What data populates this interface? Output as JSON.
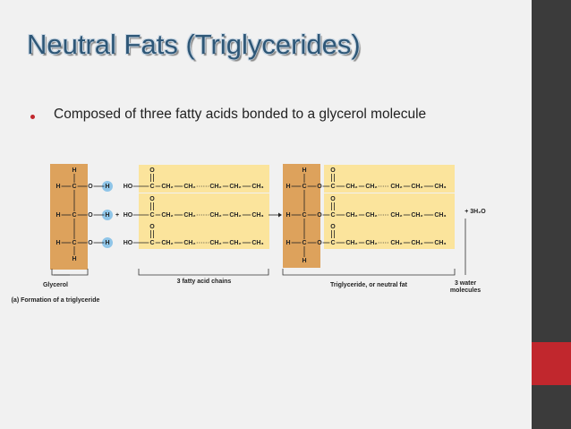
{
  "title": "Neutral Fats (Triglycerides)",
  "bullet": "Composed of three fatty acids bonded to a glycerol molecule",
  "diagram": {
    "glycerol": {
      "top_h": "H",
      "bottom_h": "H",
      "rows": [
        [
          "H",
          "C",
          "O",
          "H"
        ],
        [
          "H",
          "C",
          "O",
          "H"
        ],
        [
          "H",
          "C",
          "O",
          "H"
        ]
      ]
    },
    "plus": "+",
    "fatty_acids": {
      "rows": [
        {
          "o": "O",
          "chain": [
            "HO",
            "C",
            "CH₂",
            "CH₂",
            "CH₂",
            "CH₂",
            "CH₃"
          ]
        },
        {
          "o": "O",
          "chain": [
            "HO",
            "C",
            "CH₂",
            "CH₂",
            "CH₂",
            "CH₂",
            "CH₃"
          ]
        },
        {
          "o": "O",
          "chain": [
            "HO",
            "C",
            "CH₂",
            "CH₂",
            "CH₂",
            "CH₂",
            "CH₃"
          ]
        }
      ]
    },
    "triglyceride": {
      "top_h": "H",
      "bottom_h": "H",
      "rows": [
        {
          "glycerol": [
            "H",
            "C",
            "O"
          ],
          "o": "O",
          "chain": [
            "C",
            "CH₂",
            "CH₂",
            "CH₂",
            "CH₂",
            "CH₃"
          ]
        },
        {
          "glycerol": [
            "H",
            "C",
            "O"
          ],
          "o": "O",
          "chain": [
            "C",
            "CH₂",
            "CH₂",
            "CH₂",
            "CH₂",
            "CH₃"
          ]
        },
        {
          "glycerol": [
            "H",
            "C",
            "O"
          ],
          "o": "O",
          "chain": [
            "C",
            "CH₂",
            "CH₂",
            "CH₂",
            "CH₂",
            "CH₃"
          ]
        }
      ]
    },
    "water": "+ 3H₂O",
    "labels": {
      "glycerol": "Glycerol",
      "fatty_acids": "3 fatty acid chains",
      "triglyceride": "Triglyceride, or neutral fat",
      "water": [
        "3 water",
        "molecules"
      ]
    },
    "caption": "(a) Formation of a triglyceride"
  }
}
